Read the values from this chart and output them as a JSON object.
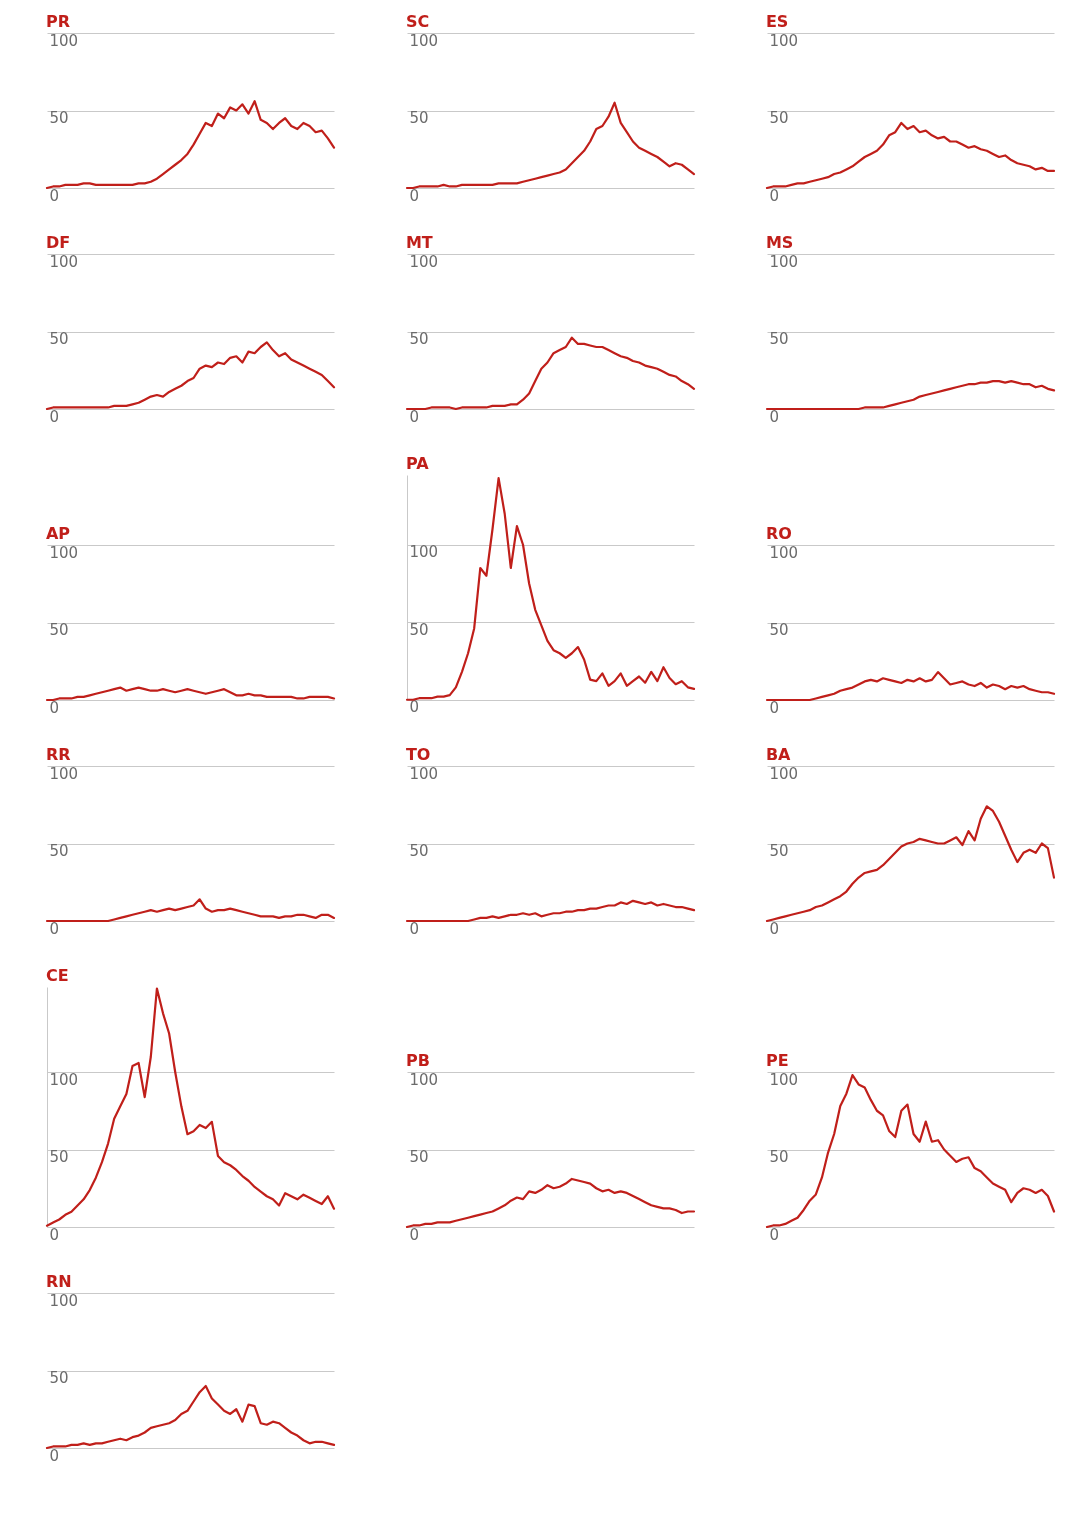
{
  "chart_data": [
    {
      "type": "line",
      "title": "PR",
      "categories": [
        null,
        null,
        null,
        null,
        null,
        null,
        null,
        null,
        null,
        null,
        null,
        null,
        null,
        null,
        null,
        null,
        null,
        null,
        null,
        null,
        null,
        null,
        null,
        null,
        null,
        null,
        null,
        null,
        null,
        null,
        null,
        null,
        null,
        null,
        null,
        null,
        null,
        null,
        null,
        null,
        null,
        null,
        null,
        null,
        null,
        null,
        null,
        null
      ],
      "values": [
        0,
        1,
        1,
        2,
        2,
        2,
        3,
        3,
        2,
        2,
        2,
        2,
        2,
        2,
        2,
        3,
        3,
        4,
        6,
        9,
        12,
        15,
        18,
        22,
        28,
        35,
        42,
        40,
        48,
        45,
        52,
        50,
        54,
        48,
        56,
        44,
        42,
        38,
        42,
        45,
        40,
        38,
        42,
        40,
        36,
        37,
        32,
        26
      ],
      "color": "#c01f1a",
      "ylim": [
        0,
        100
      ],
      "yticks": [
        0,
        50,
        100
      ],
      "grid": "y",
      "tick_labels": "y"
    },
    {
      "type": "line",
      "title": "SC",
      "categories": [
        null,
        null,
        null,
        null,
        null,
        null,
        null,
        null,
        null,
        null,
        null,
        null,
        null,
        null,
        null,
        null,
        null,
        null,
        null,
        null,
        null,
        null,
        null,
        null,
        null,
        null,
        null,
        null,
        null,
        null,
        null,
        null,
        null,
        null,
        null,
        null,
        null,
        null,
        null,
        null,
        null,
        null,
        null,
        null,
        null,
        null,
        null,
        null
      ],
      "values": [
        0,
        0,
        1,
        1,
        1,
        1,
        2,
        1,
        1,
        2,
        2,
        2,
        2,
        2,
        2,
        3,
        3,
        3,
        3,
        4,
        5,
        6,
        7,
        8,
        9,
        10,
        12,
        16,
        20,
        24,
        30,
        38,
        40,
        46,
        55,
        42,
        36,
        30,
        26,
        24,
        22,
        20,
        17,
        14,
        16,
        15,
        12,
        9
      ],
      "color": "#c01f1a",
      "ylim": [
        0,
        100
      ],
      "yticks": [
        0,
        50,
        100
      ],
      "grid": "y",
      "tick_labels": "y"
    },
    {
      "type": "line",
      "title": "ES",
      "categories": [
        null,
        null,
        null,
        null,
        null,
        null,
        null,
        null,
        null,
        null,
        null,
        null,
        null,
        null,
        null,
        null,
        null,
        null,
        null,
        null,
        null,
        null,
        null,
        null,
        null,
        null,
        null,
        null,
        null,
        null,
        null,
        null,
        null,
        null,
        null,
        null,
        null,
        null,
        null,
        null,
        null,
        null,
        null,
        null,
        null,
        null,
        null,
        null
      ],
      "values": [
        0,
        1,
        1,
        1,
        2,
        3,
        3,
        4,
        5,
        6,
        7,
        9,
        10,
        12,
        14,
        17,
        20,
        22,
        24,
        28,
        34,
        36,
        42,
        38,
        40,
        36,
        37,
        34,
        32,
        33,
        30,
        30,
        28,
        26,
        27,
        25,
        24,
        22,
        20,
        21,
        18,
        16,
        15,
        14,
        12,
        13,
        11,
        11
      ],
      "color": "#c01f1a",
      "ylim": [
        0,
        100
      ],
      "yticks": [
        0,
        50,
        100
      ],
      "grid": "y",
      "tick_labels": "y"
    },
    {
      "type": "line",
      "title": "DF",
      "categories": [
        null,
        null,
        null,
        null,
        null,
        null,
        null,
        null,
        null,
        null,
        null,
        null,
        null,
        null,
        null,
        null,
        null,
        null,
        null,
        null,
        null,
        null,
        null,
        null,
        null,
        null,
        null,
        null,
        null,
        null,
        null,
        null,
        null,
        null,
        null,
        null,
        null,
        null,
        null,
        null,
        null,
        null,
        null,
        null,
        null,
        null,
        null,
        null
      ],
      "values": [
        0,
        1,
        1,
        1,
        1,
        1,
        1,
        1,
        1,
        1,
        1,
        2,
        2,
        2,
        3,
        4,
        6,
        8,
        9,
        8,
        11,
        13,
        15,
        18,
        20,
        26,
        28,
        27,
        30,
        29,
        33,
        34,
        30,
        37,
        36,
        40,
        43,
        38,
        34,
        36,
        32,
        30,
        28,
        26,
        24,
        22,
        18,
        14
      ],
      "color": "#c01f1a",
      "ylim": [
        0,
        100
      ],
      "yticks": [
        0,
        50,
        100
      ],
      "grid": "y",
      "tick_labels": "y"
    },
    {
      "type": "line",
      "title": "MT",
      "categories": [
        null,
        null,
        null,
        null,
        null,
        null,
        null,
        null,
        null,
        null,
        null,
        null,
        null,
        null,
        null,
        null,
        null,
        null,
        null,
        null,
        null,
        null,
        null,
        null,
        null,
        null,
        null,
        null,
        null,
        null,
        null,
        null,
        null,
        null,
        null,
        null,
        null,
        null,
        null,
        null,
        null,
        null,
        null,
        null,
        null,
        null,
        null,
        null
      ],
      "values": [
        0,
        0,
        0,
        0,
        1,
        1,
        1,
        1,
        0,
        1,
        1,
        1,
        1,
        1,
        2,
        2,
        2,
        3,
        3,
        6,
        10,
        18,
        26,
        30,
        36,
        38,
        40,
        46,
        42,
        42,
        41,
        40,
        40,
        38,
        36,
        34,
        33,
        31,
        30,
        28,
        27,
        26,
        24,
        22,
        21,
        18,
        16,
        13
      ],
      "color": "#c01f1a",
      "ylim": [
        0,
        100
      ],
      "yticks": [
        0,
        50,
        100
      ],
      "grid": "y",
      "tick_labels": "y"
    },
    {
      "type": "line",
      "title": "MS",
      "categories": [
        null,
        null,
        null,
        null,
        null,
        null,
        null,
        null,
        null,
        null,
        null,
        null,
        null,
        null,
        null,
        null,
        null,
        null,
        null,
        null,
        null,
        null,
        null,
        null,
        null,
        null,
        null,
        null,
        null,
        null,
        null,
        null,
        null,
        null,
        null,
        null,
        null,
        null,
        null,
        null,
        null,
        null,
        null,
        null,
        null,
        null,
        null,
        null
      ],
      "values": [
        0,
        0,
        0,
        0,
        0,
        0,
        0,
        0,
        0,
        0,
        0,
        0,
        0,
        0,
        0,
        0,
        1,
        1,
        1,
        1,
        2,
        3,
        4,
        5,
        6,
        8,
        9,
        10,
        11,
        12,
        13,
        14,
        15,
        16,
        16,
        17,
        17,
        18,
        18,
        17,
        18,
        17,
        16,
        16,
        14,
        15,
        13,
        12
      ],
      "color": "#c01f1a",
      "ylim": [
        0,
        100
      ],
      "yticks": [
        0,
        50,
        100
      ],
      "grid": "y",
      "tick_labels": "y"
    },
    {
      "type": "line",
      "title": "AP",
      "categories": [
        null,
        null,
        null,
        null,
        null,
        null,
        null,
        null,
        null,
        null,
        null,
        null,
        null,
        null,
        null,
        null,
        null,
        null,
        null,
        null,
        null,
        null,
        null,
        null,
        null,
        null,
        null,
        null,
        null,
        null,
        null,
        null,
        null,
        null,
        null,
        null,
        null,
        null,
        null,
        null,
        null,
        null,
        null,
        null,
        null,
        null,
        null,
        null
      ],
      "values": [
        0,
        0,
        1,
        1,
        1,
        2,
        2,
        3,
        4,
        5,
        6,
        7,
        8,
        6,
        7,
        8,
        7,
        6,
        6,
        7,
        6,
        5,
        6,
        7,
        6,
        5,
        4,
        5,
        6,
        7,
        5,
        3,
        3,
        4,
        3,
        3,
        2,
        2,
        2,
        2,
        2,
        1,
        1,
        2,
        2,
        2,
        2,
        1
      ],
      "color": "#c01f1a",
      "ylim": [
        0,
        100
      ],
      "yticks": [
        0,
        50,
        100
      ],
      "grid": "y",
      "tick_labels": "y"
    },
    {
      "type": "line",
      "title": "PA",
      "categories": [
        null,
        null,
        null,
        null,
        null,
        null,
        null,
        null,
        null,
        null,
        null,
        null,
        null,
        null,
        null,
        null,
        null,
        null,
        null,
        null,
        null,
        null,
        null,
        null,
        null,
        null,
        null,
        null,
        null,
        null,
        null,
        null,
        null,
        null,
        null,
        null,
        null,
        null,
        null,
        null,
        null,
        null,
        null,
        null,
        null,
        null,
        null,
        null
      ],
      "values": [
        0,
        0,
        1,
        1,
        1,
        2,
        2,
        3,
        8,
        18,
        30,
        46,
        85,
        80,
        110,
        143,
        120,
        85,
        112,
        100,
        75,
        58,
        48,
        38,
        32,
        30,
        27,
        30,
        34,
        26,
        13,
        12,
        17,
        9,
        12,
        17,
        9,
        12,
        15,
        11,
        18,
        12,
        21,
        14,
        10,
        12,
        8,
        7
      ],
      "color": "#c01f1a",
      "ylim": [
        0,
        145
      ],
      "yticks": [
        0,
        50,
        100
      ],
      "grid": "y",
      "tick_labels": "y"
    },
    {
      "type": "line",
      "title": "RO",
      "categories": [
        null,
        null,
        null,
        null,
        null,
        null,
        null,
        null,
        null,
        null,
        null,
        null,
        null,
        null,
        null,
        null,
        null,
        null,
        null,
        null,
        null,
        null,
        null,
        null,
        null,
        null,
        null,
        null,
        null,
        null,
        null,
        null,
        null,
        null,
        null,
        null,
        null,
        null,
        null,
        null,
        null,
        null,
        null,
        null,
        null,
        null,
        null,
        null
      ],
      "values": [
        0,
        0,
        0,
        0,
        0,
        0,
        0,
        0,
        1,
        2,
        3,
        4,
        6,
        7,
        8,
        10,
        12,
        13,
        12,
        14,
        13,
        12,
        11,
        13,
        12,
        14,
        12,
        13,
        18,
        14,
        10,
        11,
        12,
        10,
        9,
        11,
        8,
        10,
        9,
        7,
        9,
        8,
        9,
        7,
        6,
        5,
        5,
        4
      ],
      "color": "#c01f1a",
      "ylim": [
        0,
        100
      ],
      "yticks": [
        0,
        50,
        100
      ],
      "grid": "y",
      "tick_labels": "y"
    },
    {
      "type": "line",
      "title": "RR",
      "categories": [
        null,
        null,
        null,
        null,
        null,
        null,
        null,
        null,
        null,
        null,
        null,
        null,
        null,
        null,
        null,
        null,
        null,
        null,
        null,
        null,
        null,
        null,
        null,
        null,
        null,
        null,
        null,
        null,
        null,
        null,
        null,
        null,
        null,
        null,
        null,
        null,
        null,
        null,
        null,
        null,
        null,
        null,
        null,
        null,
        null,
        null,
        null,
        null
      ],
      "values": [
        0,
        0,
        0,
        0,
        0,
        0,
        0,
        0,
        0,
        0,
        0,
        1,
        2,
        3,
        4,
        5,
        6,
        7,
        6,
        7,
        8,
        7,
        8,
        9,
        10,
        14,
        8,
        6,
        7,
        7,
        8,
        7,
        6,
        5,
        4,
        3,
        3,
        3,
        2,
        3,
        3,
        4,
        4,
        3,
        2,
        4,
        4,
        2
      ],
      "color": "#c01f1a",
      "ylim": [
        0,
        100
      ],
      "yticks": [
        0,
        50,
        100
      ],
      "grid": "y",
      "tick_labels": "y"
    },
    {
      "type": "line",
      "title": "TO",
      "categories": [
        null,
        null,
        null,
        null,
        null,
        null,
        null,
        null,
        null,
        null,
        null,
        null,
        null,
        null,
        null,
        null,
        null,
        null,
        null,
        null,
        null,
        null,
        null,
        null,
        null,
        null,
        null,
        null,
        null,
        null,
        null,
        null,
        null,
        null,
        null,
        null,
        null,
        null,
        null,
        null,
        null,
        null,
        null,
        null,
        null,
        null,
        null,
        null
      ],
      "values": [
        0,
        0,
        0,
        0,
        0,
        0,
        0,
        0,
        0,
        0,
        0,
        1,
        2,
        2,
        3,
        2,
        3,
        4,
        4,
        5,
        4,
        5,
        3,
        4,
        5,
        5,
        6,
        6,
        7,
        7,
        8,
        8,
        9,
        10,
        10,
        12,
        11,
        13,
        12,
        11,
        12,
        10,
        11,
        10,
        9,
        9,
        8,
        7
      ],
      "color": "#c01f1a",
      "ylim": [
        0,
        100
      ],
      "yticks": [
        0,
        50,
        100
      ],
      "grid": "y",
      "tick_labels": "y"
    },
    {
      "type": "line",
      "title": "BA",
      "categories": [
        null,
        null,
        null,
        null,
        null,
        null,
        null,
        null,
        null,
        null,
        null,
        null,
        null,
        null,
        null,
        null,
        null,
        null,
        null,
        null,
        null,
        null,
        null,
        null,
        null,
        null,
        null,
        null,
        null,
        null,
        null,
        null,
        null,
        null,
        null,
        null,
        null,
        null,
        null,
        null,
        null,
        null,
        null,
        null,
        null,
        null,
        null,
        null
      ],
      "values": [
        0,
        1,
        2,
        3,
        4,
        5,
        6,
        7,
        9,
        10,
        12,
        14,
        16,
        19,
        24,
        28,
        31,
        32,
        33,
        36,
        40,
        44,
        48,
        50,
        51,
        53,
        52,
        51,
        50,
        50,
        52,
        54,
        49,
        58,
        52,
        66,
        74,
        71,
        64,
        55,
        46,
        38,
        44,
        46,
        44,
        50,
        47,
        28
      ],
      "color": "#c01f1a",
      "ylim": [
        0,
        100
      ],
      "yticks": [
        0,
        50,
        100
      ],
      "grid": "y",
      "tick_labels": "y"
    },
    {
      "type": "line",
      "title": "CE",
      "categories": [
        null,
        null,
        null,
        null,
        null,
        null,
        null,
        null,
        null,
        null,
        null,
        null,
        null,
        null,
        null,
        null,
        null,
        null,
        null,
        null,
        null,
        null,
        null,
        null,
        null,
        null,
        null,
        null,
        null,
        null,
        null,
        null,
        null,
        null,
        null,
        null,
        null,
        null,
        null,
        null,
        null,
        null,
        null,
        null,
        null,
        null,
        null,
        null
      ],
      "values": [
        1,
        3,
        5,
        8,
        10,
        14,
        18,
        24,
        32,
        42,
        54,
        70,
        78,
        86,
        104,
        106,
        84,
        110,
        154,
        138,
        125,
        100,
        78,
        60,
        62,
        66,
        64,
        68,
        46,
        42,
        40,
        37,
        33,
        30,
        26,
        23,
        20,
        18,
        14,
        22,
        20,
        18,
        21,
        19,
        17,
        15,
        20,
        12
      ],
      "color": "#c01f1a",
      "ylim": [
        0,
        155
      ],
      "yticks": [
        0,
        50,
        100
      ],
      "grid": "y",
      "tick_labels": "y"
    },
    {
      "type": "line",
      "title": "PB",
      "categories": [
        null,
        null,
        null,
        null,
        null,
        null,
        null,
        null,
        null,
        null,
        null,
        null,
        null,
        null,
        null,
        null,
        null,
        null,
        null,
        null,
        null,
        null,
        null,
        null,
        null,
        null,
        null,
        null,
        null,
        null,
        null,
        null,
        null,
        null,
        null,
        null,
        null,
        null,
        null,
        null,
        null,
        null,
        null,
        null,
        null,
        null,
        null,
        null
      ],
      "values": [
        0,
        1,
        1,
        2,
        2,
        3,
        3,
        3,
        4,
        5,
        6,
        7,
        8,
        9,
        10,
        12,
        14,
        17,
        19,
        18,
        23,
        22,
        24,
        27,
        25,
        26,
        28,
        31,
        30,
        29,
        28,
        25,
        23,
        24,
        22,
        23,
        22,
        20,
        18,
        16,
        14,
        13,
        12,
        12,
        11,
        9,
        10,
        10
      ],
      "color": "#c01f1a",
      "ylim": [
        0,
        100
      ],
      "yticks": [
        0,
        50,
        100
      ],
      "grid": "y",
      "tick_labels": "y"
    },
    {
      "type": "line",
      "title": "PE",
      "categories": [
        null,
        null,
        null,
        null,
        null,
        null,
        null,
        null,
        null,
        null,
        null,
        null,
        null,
        null,
        null,
        null,
        null,
        null,
        null,
        null,
        null,
        null,
        null,
        null,
        null,
        null,
        null,
        null,
        null,
        null,
        null,
        null,
        null,
        null,
        null,
        null,
        null,
        null,
        null,
        null,
        null,
        null,
        null,
        null,
        null,
        null,
        null,
        null
      ],
      "values": [
        0,
        1,
        1,
        2,
        4,
        6,
        11,
        17,
        21,
        32,
        48,
        60,
        78,
        86,
        98,
        92,
        90,
        82,
        75,
        72,
        62,
        58,
        75,
        79,
        60,
        55,
        68,
        55,
        56,
        50,
        46,
        42,
        44,
        45,
        38,
        36,
        32,
        28,
        26,
        24,
        16,
        22,
        25,
        24,
        22,
        24,
        20,
        10
      ],
      "color": "#c01f1a",
      "ylim": [
        0,
        100
      ],
      "yticks": [
        0,
        50,
        100
      ],
      "grid": "y",
      "tick_labels": "y"
    },
    {
      "type": "line",
      "title": "RN",
      "categories": [
        null,
        null,
        null,
        null,
        null,
        null,
        null,
        null,
        null,
        null,
        null,
        null,
        null,
        null,
        null,
        null,
        null,
        null,
        null,
        null,
        null,
        null,
        null,
        null,
        null,
        null,
        null,
        null,
        null,
        null,
        null,
        null,
        null,
        null,
        null,
        null,
        null,
        null,
        null,
        null,
        null,
        null,
        null,
        null,
        null,
        null,
        null,
        null
      ],
      "values": [
        0,
        1,
        1,
        1,
        2,
        2,
        3,
        2,
        3,
        3,
        4,
        5,
        6,
        5,
        7,
        8,
        10,
        13,
        14,
        15,
        16,
        18,
        22,
        24,
        30,
        36,
        40,
        32,
        28,
        24,
        22,
        25,
        17,
        28,
        27,
        16,
        15,
        17,
        16,
        13,
        10,
        8,
        5,
        3,
        4,
        4,
        3,
        2
      ],
      "color": "#c01f1a",
      "ylim": [
        0,
        100
      ],
      "yticks": [
        0,
        50,
        100
      ],
      "grid": "y",
      "tick_labels": "y"
    }
  ]
}
